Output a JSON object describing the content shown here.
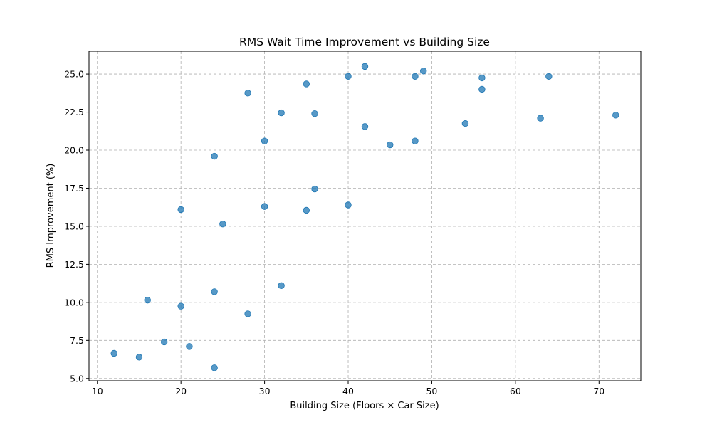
{
  "chart_data": {
    "type": "scatter",
    "title": "RMS Wait Time Improvement vs Building Size",
    "xlabel": "Building Size (Floors × Car Size)",
    "ylabel": "RMS Improvement (%)",
    "xlim": [
      9,
      75
    ],
    "ylim": [
      4.85,
      26.5
    ],
    "xticks": [
      10,
      20,
      30,
      40,
      50,
      60,
      70
    ],
    "yticks": [
      5.0,
      7.5,
      10.0,
      12.5,
      15.0,
      17.5,
      20.0,
      22.5,
      25.0
    ],
    "xtick_labels": [
      "10",
      "20",
      "30",
      "40",
      "50",
      "60",
      "70"
    ],
    "ytick_labels": [
      "5.0",
      "7.5",
      "10.0",
      "12.5",
      "15.0",
      "17.5",
      "20.0",
      "22.5",
      "25.0"
    ],
    "grid": true,
    "point_color": "#1f77b4",
    "points": [
      {
        "x": 12,
        "y": 6.65
      },
      {
        "x": 15,
        "y": 6.4
      },
      {
        "x": 16,
        "y": 10.15
      },
      {
        "x": 18,
        "y": 7.4
      },
      {
        "x": 20,
        "y": 16.1
      },
      {
        "x": 20,
        "y": 9.75
      },
      {
        "x": 21,
        "y": 7.1
      },
      {
        "x": 24,
        "y": 19.6
      },
      {
        "x": 24,
        "y": 10.7
      },
      {
        "x": 24,
        "y": 5.7
      },
      {
        "x": 25,
        "y": 15.15
      },
      {
        "x": 28,
        "y": 23.75
      },
      {
        "x": 28,
        "y": 9.25
      },
      {
        "x": 30,
        "y": 20.6
      },
      {
        "x": 30,
        "y": 16.3
      },
      {
        "x": 32,
        "y": 22.45
      },
      {
        "x": 32,
        "y": 11.1
      },
      {
        "x": 35,
        "y": 24.35
      },
      {
        "x": 35,
        "y": 16.05
      },
      {
        "x": 36,
        "y": 22.4
      },
      {
        "x": 36,
        "y": 17.45
      },
      {
        "x": 40,
        "y": 24.85
      },
      {
        "x": 40,
        "y": 16.4
      },
      {
        "x": 42,
        "y": 25.5
      },
      {
        "x": 42,
        "y": 21.55
      },
      {
        "x": 45,
        "y": 20.35
      },
      {
        "x": 48,
        "y": 24.85
      },
      {
        "x": 48,
        "y": 20.6
      },
      {
        "x": 49,
        "y": 25.2
      },
      {
        "x": 54,
        "y": 21.75
      },
      {
        "x": 56,
        "y": 24.75
      },
      {
        "x": 56,
        "y": 24.0
      },
      {
        "x": 63,
        "y": 22.1
      },
      {
        "x": 64,
        "y": 24.85
      },
      {
        "x": 72,
        "y": 22.3
      }
    ]
  }
}
